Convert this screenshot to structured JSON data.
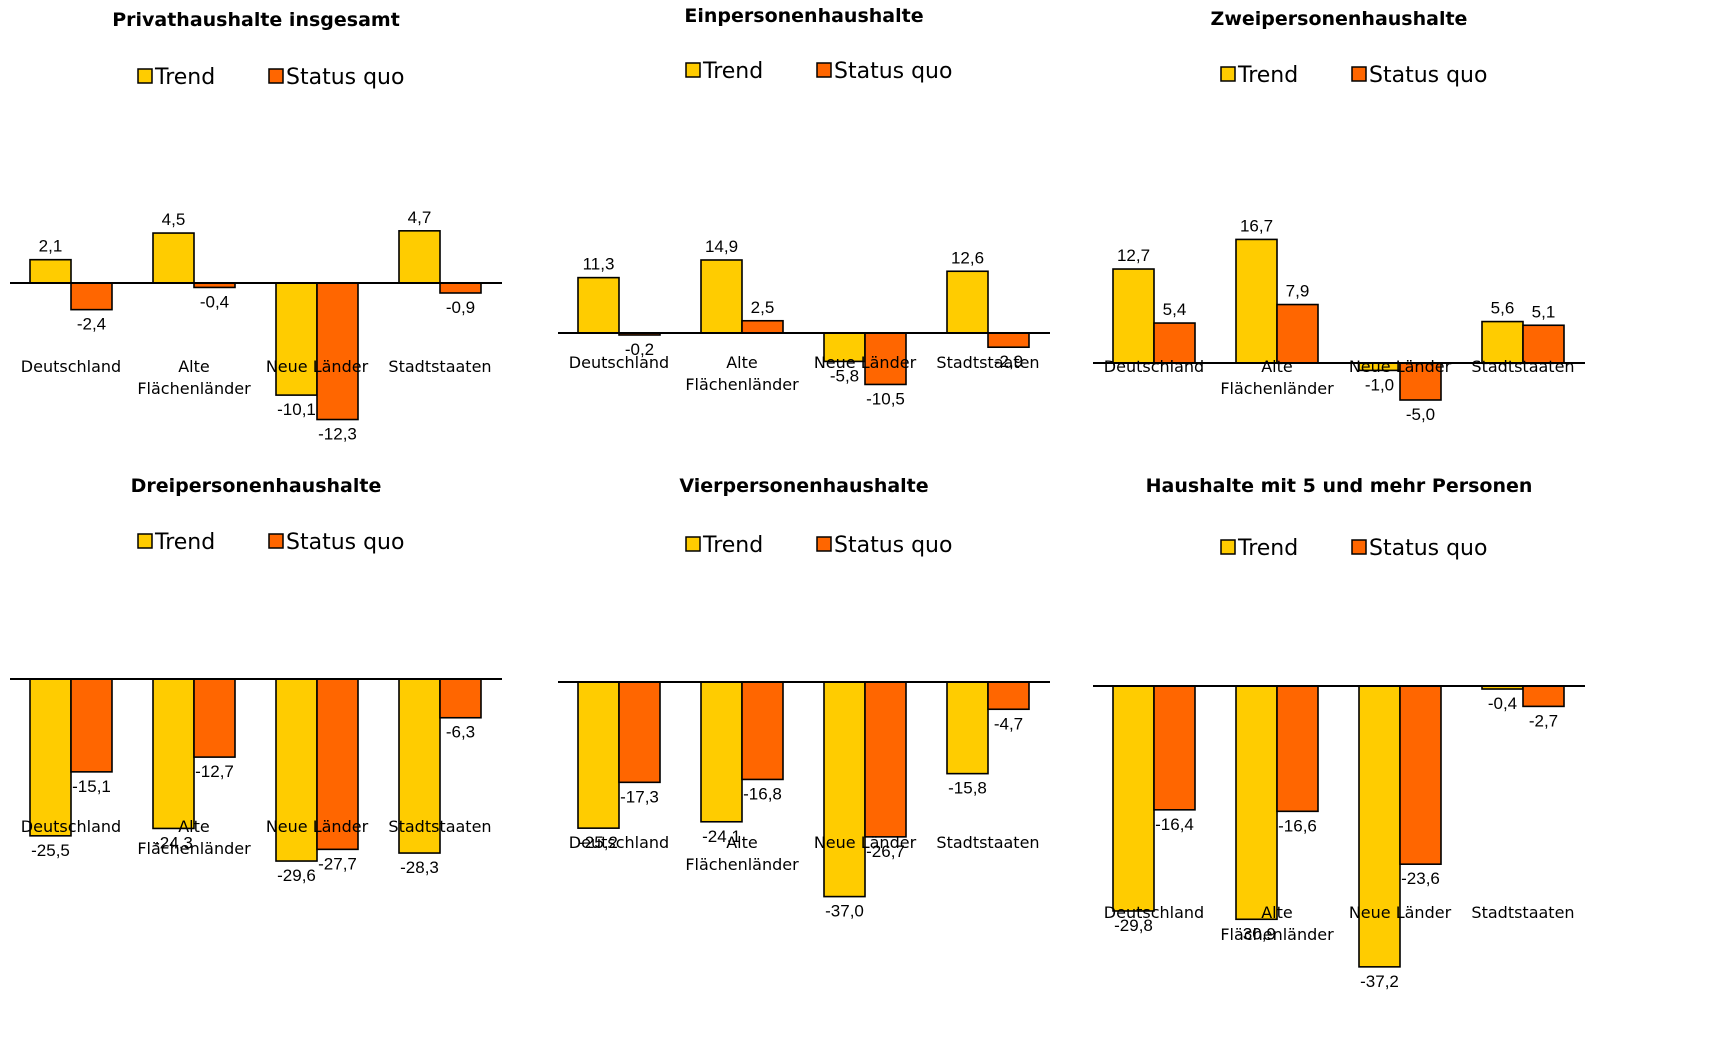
{
  "colors": {
    "trend": "#FFCC00",
    "status_quo": "#FF6600",
    "outline": "#000000"
  },
  "chart_data": [
    {
      "type": "bar",
      "title": "Privathaushalte insgesamt",
      "categories": [
        [
          "Deutschland"
        ],
        [
          "Alte",
          "Flächenländer"
        ],
        [
          "Neue Länder"
        ],
        [
          "Stadtstaaten"
        ]
      ],
      "series": [
        {
          "name": "Trend",
          "values": [
            2.1,
            4.5,
            -10.1,
            4.7
          ],
          "labels": [
            "2,1",
            "4,5",
            "-10,1",
            "4,7"
          ]
        },
        {
          "name": "Status quo",
          "values": [
            -2.4,
            -0.4,
            -12.3,
            -0.9
          ],
          "labels": [
            "-2,4",
            "-0,4",
            "-12,3",
            "-0,9"
          ]
        }
      ],
      "legend": "top",
      "grid": false
    },
    {
      "type": "bar",
      "title": "Einpersonenhaushalte",
      "categories": [
        [
          "Deutschland"
        ],
        [
          "Alte",
          "Flächenländer"
        ],
        [
          "Neue Länder"
        ],
        [
          "Stadtstaaten"
        ]
      ],
      "series": [
        {
          "name": "Trend",
          "values": [
            11.3,
            14.9,
            -5.8,
            12.6
          ],
          "labels": [
            "11,3",
            "14,9",
            "-5,8",
            "12,6"
          ]
        },
        {
          "name": "Status quo",
          "values": [
            -0.2,
            2.5,
            -10.5,
            -2.9
          ],
          "labels": [
            "-0,2",
            "2,5",
            "-10,5",
            "-2,9"
          ]
        }
      ],
      "legend": "top",
      "grid": false
    },
    {
      "type": "bar",
      "title": "Zweipersonenhaushalte",
      "categories": [
        [
          "Deutschland"
        ],
        [
          "Alte",
          "Flächenländer"
        ],
        [
          "Neue Länder"
        ],
        [
          "Stadtstaaten"
        ]
      ],
      "series": [
        {
          "name": "Trend",
          "values": [
            12.7,
            16.7,
            -1.0,
            5.6
          ],
          "labels": [
            "12,7",
            "16,7",
            "-1,0",
            "5,6"
          ]
        },
        {
          "name": "Status quo",
          "values": [
            5.4,
            7.9,
            -5.0,
            5.1
          ],
          "labels": [
            "5,4",
            "7,9",
            "-5,0",
            "5,1"
          ]
        }
      ],
      "legend": "top",
      "grid": false
    },
    {
      "type": "bar",
      "title": "Dreipersonenhaushalte",
      "categories": [
        [
          "Deutschland"
        ],
        [
          "Alte",
          "Flächenländer"
        ],
        [
          "Neue Länder"
        ],
        [
          "Stadtstaaten"
        ]
      ],
      "series": [
        {
          "name": "Trend",
          "values": [
            -25.5,
            -24.3,
            -29.6,
            -28.3
          ],
          "labels": [
            "-25,5",
            "-24,3",
            "-29,6",
            "-28,3"
          ]
        },
        {
          "name": "Status quo",
          "values": [
            -15.1,
            -12.7,
            -27.7,
            -6.3
          ],
          "labels": [
            "-15,1",
            "-12,7",
            "-27,7",
            "-6,3"
          ]
        }
      ],
      "legend": "top",
      "grid": false
    },
    {
      "type": "bar",
      "title": "Vierpersonenhaushalte",
      "categories": [
        [
          "Deutschland"
        ],
        [
          "Alte",
          "Flächenländer"
        ],
        [
          "Neue Länder"
        ],
        [
          "Stadtstaaten"
        ]
      ],
      "series": [
        {
          "name": "Trend",
          "values": [
            -25.2,
            -24.1,
            -37.0,
            -15.8
          ],
          "labels": [
            "-25,2",
            "-24,1",
            "-37,0",
            "-15,8"
          ]
        },
        {
          "name": "Status quo",
          "values": [
            -17.3,
            -16.8,
            -26.7,
            -4.7
          ],
          "labels": [
            "-17,3",
            "-16,8",
            "-26,7",
            "-4,7"
          ]
        }
      ],
      "legend": "top",
      "grid": false
    },
    {
      "type": "bar",
      "title": "Haushalte mit 5 und mehr Personen",
      "categories": [
        [
          "Deutschland"
        ],
        [
          "Alte",
          "Flächenländer"
        ],
        [
          "Neue Länder"
        ],
        [
          "Stadtstaaten"
        ]
      ],
      "series": [
        {
          "name": "Trend",
          "values": [
            -29.8,
            -30.9,
            -37.2,
            -0.4
          ],
          "labels": [
            "-29,8",
            "-30,9",
            "-37,2",
            "-0,4"
          ]
        },
        {
          "name": "Status quo",
          "values": [
            -16.4,
            -16.6,
            -23.6,
            -2.7
          ],
          "labels": [
            "-16,4",
            "-16,6",
            "-23,6",
            "-2,7"
          ]
        }
      ],
      "legend": "top",
      "grid": false
    }
  ]
}
